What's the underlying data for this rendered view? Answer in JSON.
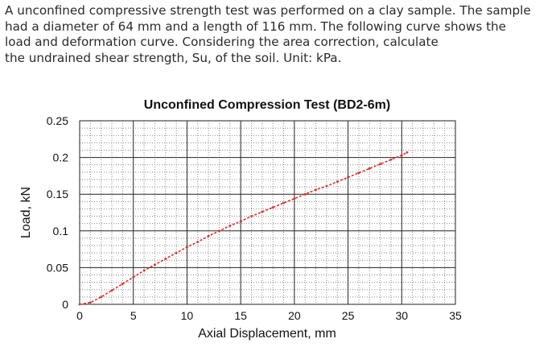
{
  "question": {
    "lines": [
      "A unconfined compressive strength test was performed on a clay sample. The sample",
      "had a diameter of 64 mm and a length of 116 mm. The following curve shows the",
      "load and deformation curve.  Considering the area correction, calculate",
      "the undrained shear strength, Su, of the soil. Unit: kPa."
    ]
  },
  "chart_data": {
    "type": "line",
    "title": "Unconfined Compression Test (BD2-6m)",
    "xlabel": "Axial Displacement, mm",
    "ylabel": "Load, kN",
    "xlim": [
      0,
      35
    ],
    "ylim": [
      0,
      0.25
    ],
    "xticks": [
      "0",
      "5",
      "10",
      "15",
      "20",
      "25",
      "30",
      "35"
    ],
    "yticks": [
      "0",
      "0.05",
      "0.1",
      "0.15",
      "0.2",
      "0.25"
    ],
    "grid": true,
    "minor_grid": true,
    "series": [
      {
        "color": "#d9322a",
        "x": [
          0,
          1,
          2,
          3,
          4,
          5,
          6,
          7,
          8,
          9,
          10,
          11,
          12,
          13,
          14,
          15,
          16,
          17,
          18,
          19,
          20,
          21,
          22,
          23,
          24,
          25,
          26,
          27,
          28,
          29,
          30,
          30.5
        ],
        "y": [
          0,
          0.0025,
          0.01,
          0.019,
          0.028,
          0.037,
          0.046,
          0.054,
          0.062,
          0.07,
          0.078,
          0.085,
          0.093,
          0.1,
          0.107,
          0.113,
          0.12,
          0.126,
          0.132,
          0.138,
          0.144,
          0.15,
          0.156,
          0.161,
          0.167,
          0.173,
          0.179,
          0.185,
          0.191,
          0.197,
          0.203,
          0.207
        ]
      }
    ]
  }
}
